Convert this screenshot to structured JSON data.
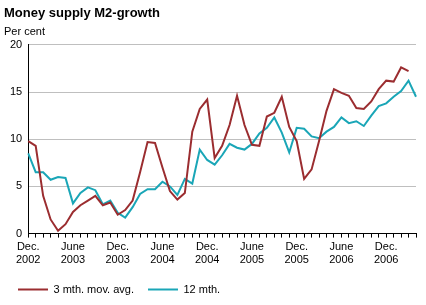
{
  "chart_data": {
    "type": "line",
    "title": "Money supply M2-growth",
    "ylabel": "Per cent",
    "categories": [
      "Dec. 2002",
      null,
      null,
      null,
      null,
      null,
      "June 2003",
      null,
      null,
      null,
      null,
      null,
      "Dec. 2003",
      null,
      null,
      null,
      null,
      null,
      "June 2004",
      null,
      null,
      null,
      null,
      null,
      "Dec. 2004",
      null,
      null,
      null,
      null,
      null,
      "June 2005",
      null,
      null,
      null,
      null,
      null,
      "Dec. 2005",
      null,
      null,
      null,
      null,
      null,
      "June 2006",
      null,
      null,
      null,
      null,
      null,
      "Dec. 2006",
      null,
      null,
      null,
      null
    ],
    "series": [
      {
        "name": "3 mth. mov. avg.",
        "color": "#9b2d30",
        "values": [
          9.8,
          9.3,
          4.0,
          1.5,
          0.3,
          1.0,
          2.3,
          3.0,
          3.5,
          4.0,
          3.0,
          3.3,
          2.0,
          2.5,
          3.5,
          6.5,
          9.7,
          9.6,
          7.0,
          4.5,
          3.6,
          4.3,
          10.8,
          13.2,
          14.2,
          8.0,
          9.3,
          11.5,
          14.6,
          11.5,
          9.4,
          9.3,
          12.4,
          12.8,
          14.5,
          11.3,
          9.8,
          5.8,
          6.8,
          9.8,
          13.0,
          15.3,
          14.9,
          14.6,
          13.3,
          13.2,
          14.0,
          15.3,
          16.2,
          16.1,
          17.6,
          17.2,
          null
        ]
      },
      {
        "name": "12 mth.",
        "color": "#1aa6b7",
        "values": [
          8.5,
          6.5,
          6.5,
          5.7,
          6.0,
          5.9,
          3.2,
          4.3,
          4.9,
          4.6,
          3.1,
          3.5,
          2.2,
          1.7,
          2.8,
          4.2,
          4.7,
          4.7,
          5.5,
          5.0,
          4.1,
          5.8,
          5.3,
          8.9,
          7.8,
          7.3,
          8.3,
          9.5,
          9.1,
          8.9,
          9.5,
          10.6,
          11.2,
          12.3,
          10.7,
          8.6,
          11.2,
          11.1,
          10.3,
          10.1,
          10.8,
          11.3,
          12.3,
          11.7,
          11.9,
          11.4,
          12.5,
          13.5,
          13.8,
          14.5,
          15.1,
          16.2,
          14.5
        ]
      }
    ],
    "ylim": [
      0,
      20
    ],
    "yticks": [
      0,
      5,
      10,
      15,
      20
    ],
    "grid": true,
    "legend": "bottom"
  }
}
